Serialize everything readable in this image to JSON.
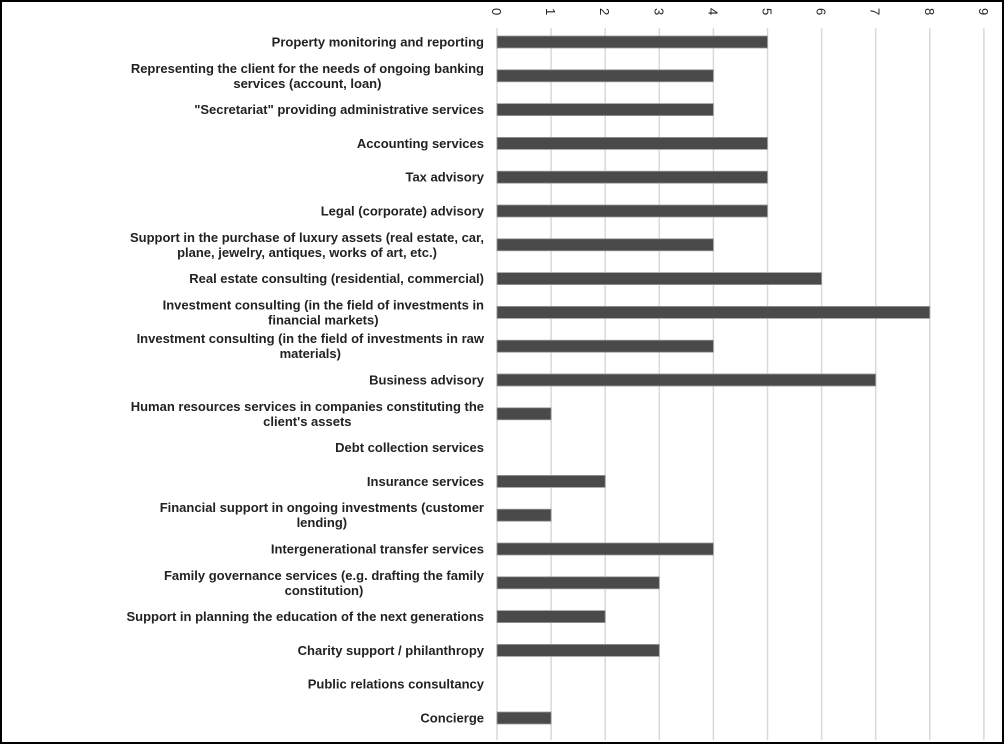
{
  "chart_data": {
    "type": "bar",
    "orientation": "horizontal",
    "categories": [
      [
        "Property monitoring and reporting"
      ],
      [
        "Representing the client for the needs of ongoing banking",
        "services (account, loan)"
      ],
      [
        "\"Secretariat\" providing administrative services"
      ],
      [
        "Accounting services"
      ],
      [
        "Tax advisory"
      ],
      [
        "Legal (corporate) advisory"
      ],
      [
        "Support in the purchase of luxury assets (real estate, car,",
        "plane, jewelry, antiques, works of art, etc.)"
      ],
      [
        "Real estate consulting (residential, commercial)"
      ],
      [
        "Investment consulting (in the field of investments in",
        "financial markets)"
      ],
      [
        "Investment consulting (in the field of investments in raw",
        "materials)"
      ],
      [
        "Business advisory"
      ],
      [
        "Human resources services in companies constituting the",
        "client's assets"
      ],
      [
        "Debt collection services"
      ],
      [
        "Insurance services"
      ],
      [
        "Financial support in ongoing investments (customer",
        "lending)"
      ],
      [
        "Intergenerational transfer services"
      ],
      [
        "Family governance services (e.g. drafting the family",
        "constitution)"
      ],
      [
        "Support in planning the education of the next generations"
      ],
      [
        "Charity support / philanthropy"
      ],
      [
        "Public relations consultancy"
      ],
      [
        "Concierge"
      ]
    ],
    "values": [
      5,
      4,
      4,
      5,
      5,
      5,
      4,
      6,
      8,
      4,
      7,
      1,
      0,
      2,
      1,
      4,
      3,
      2,
      3,
      0,
      1
    ],
    "xlim": [
      0,
      9
    ],
    "xticks": [
      "0",
      "1",
      "2",
      "3",
      "4",
      "5",
      "6",
      "7",
      "8",
      "9"
    ],
    "xaxis_position": "top",
    "grid": true,
    "bar_color": "#4a4a4a",
    "grid_color": "#d9d9d9"
  }
}
